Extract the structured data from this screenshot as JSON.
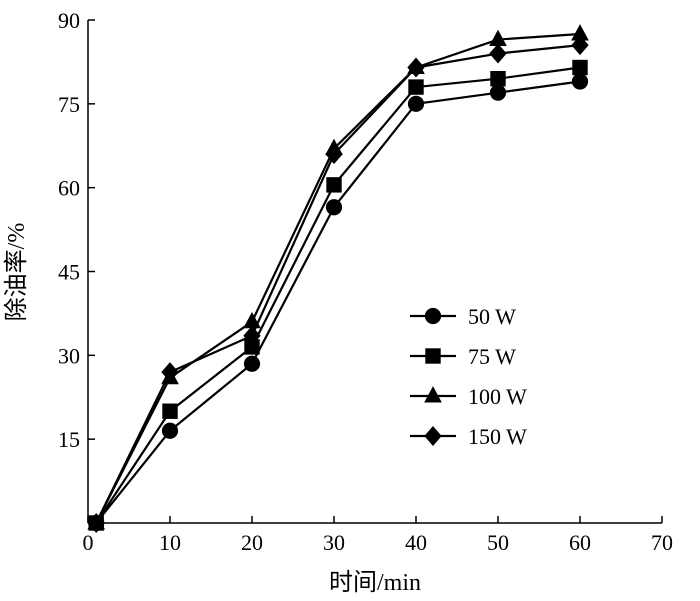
{
  "chart_data": {
    "type": "line",
    "xlabel": "时间/min",
    "ylabel": "除油率/%",
    "xlim": [
      0,
      70
    ],
    "ylim": [
      0,
      90
    ],
    "xticks": [
      0,
      10,
      20,
      30,
      40,
      50,
      60,
      70
    ],
    "yticks": [
      15,
      30,
      45,
      60,
      75,
      90
    ],
    "grid": false,
    "legend_position": "center-right",
    "x": [
      1,
      10,
      20,
      30,
      40,
      50,
      60
    ],
    "series": [
      {
        "name": "50 W",
        "marker": "circle",
        "values": [
          0,
          16.5,
          28.5,
          56.5,
          75.0,
          77.0,
          79.0
        ]
      },
      {
        "name": "75 W",
        "marker": "square",
        "values": [
          0,
          20.0,
          31.5,
          60.5,
          78.0,
          79.5,
          81.5
        ]
      },
      {
        "name": "100 W",
        "marker": "triangle",
        "values": [
          0,
          26.0,
          36.0,
          67.0,
          81.5,
          86.5,
          87.5
        ]
      },
      {
        "name": "150 W",
        "marker": "diamond",
        "values": [
          0,
          27.0,
          33.5,
          66.0,
          81.5,
          84.0,
          85.5
        ]
      }
    ],
    "colors": {
      "line": "#000000",
      "marker": "#000000",
      "background": "#ffffff"
    }
  }
}
